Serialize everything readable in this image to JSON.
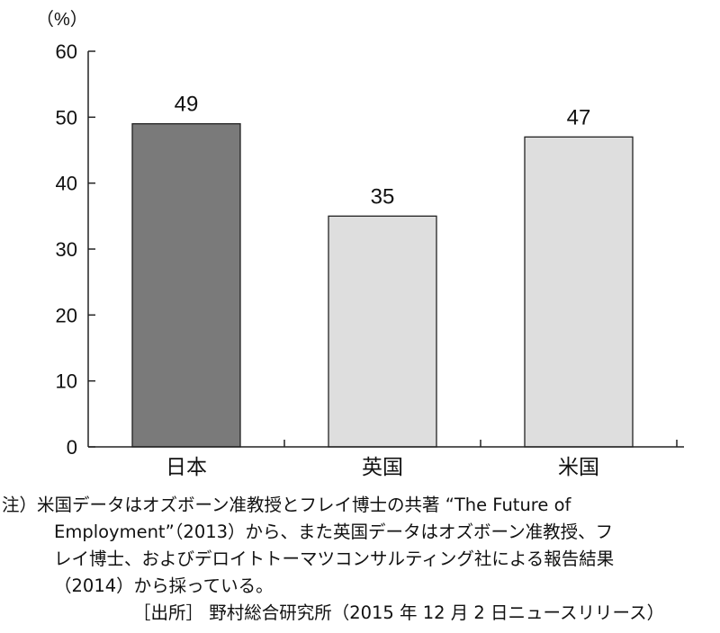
{
  "chart_data": {
    "type": "bar",
    "categories": [
      "日本",
      "英国",
      "米国"
    ],
    "values": [
      49,
      35,
      47
    ],
    "data_labels": [
      "49",
      "35",
      "47"
    ],
    "ylim": [
      0,
      60
    ],
    "yticks": [
      0,
      10,
      20,
      30,
      40,
      50,
      60
    ],
    "y_unit": "（%）",
    "grid": false,
    "bar_colors": [
      "#7a7a7a",
      "#dedede",
      "#dedede"
    ],
    "bar_stroke": "#222222"
  },
  "notes": {
    "lines": [
      "注）米国データはオズボーン准教授とフレイ博士の共著 “The Future of",
      "Employment”（2013）から、また英国データはオズボーン准教授、フ",
      "レイ博士、およびデロイトトーマツコンサルティング社による報告結果",
      "（2014）から採っている。"
    ],
    "source": "［出所］ 野村総合研究所（2015 年 12 月 2 日ニュースリリース）"
  }
}
